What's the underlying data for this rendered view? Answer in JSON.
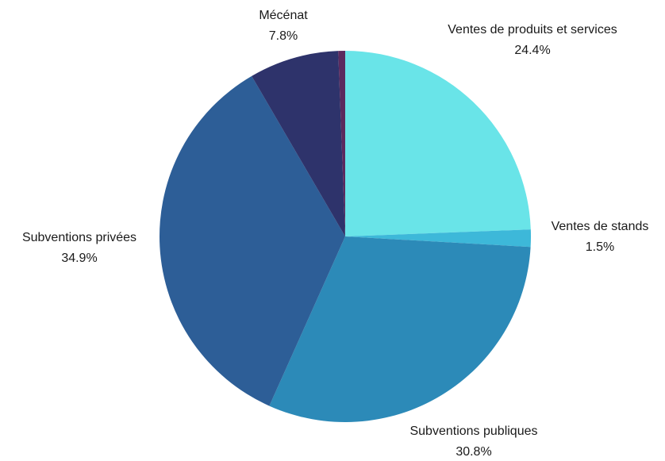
{
  "chart_data": {
    "type": "pie",
    "start_angle_deg": 90,
    "direction": "clockwise",
    "slices": [
      {
        "label": "Ventes de produits et services",
        "value": 24.4,
        "pct_label": "24.4%",
        "color": "#69E4E8"
      },
      {
        "label": "Ventes de stands",
        "value": 1.5,
        "pct_label": "1.5%",
        "color": "#3DB8D9"
      },
      {
        "label": "Subventions publiques",
        "value": 30.8,
        "pct_label": "30.8%",
        "color": "#2C8AB8"
      },
      {
        "label": "Subventions privées",
        "value": 34.9,
        "pct_label": "34.9%",
        "color": "#2D5E97"
      },
      {
        "label": "Mécénat",
        "value": 7.8,
        "pct_label": "7.8%",
        "color": "#2E336B"
      },
      {
        "label": "",
        "value": 0.6,
        "pct_label": "",
        "color": "#5B2A5E"
      }
    ]
  }
}
